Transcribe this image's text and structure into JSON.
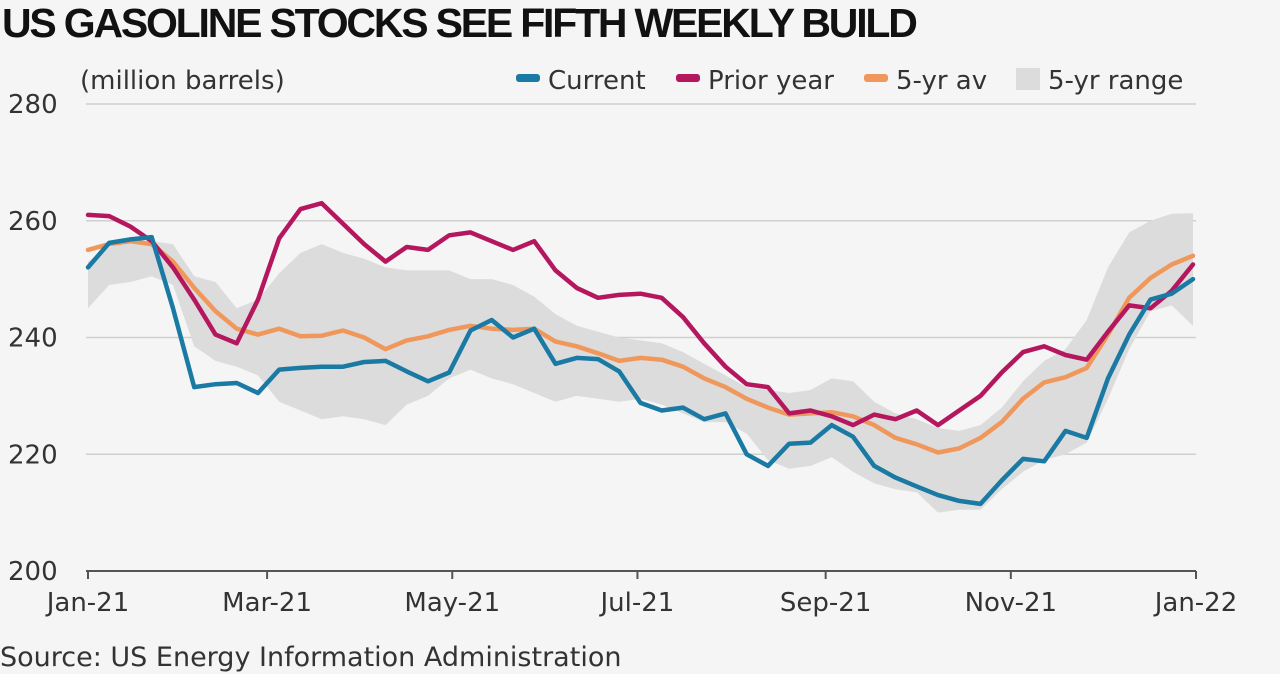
{
  "chart_data": {
    "type": "line",
    "title": "US GASOLINE STOCKS SEE FIFTH WEEKLY BUILD",
    "ylabel": "(million barrels)",
    "source": "Source: US Energy Information Administration",
    "ylim": [
      200,
      280
    ],
    "yticks": [
      200,
      220,
      240,
      260,
      280
    ],
    "xrange": [
      "2021-01-01",
      "2022-01-01"
    ],
    "xticks": [
      {
        "date": "2021-01-01",
        "label": "Jan-21"
      },
      {
        "date": "2021-03-01",
        "label": "Mar-21"
      },
      {
        "date": "2021-05-01",
        "label": "May-21"
      },
      {
        "date": "2021-07-01",
        "label": "Jul-21"
      },
      {
        "date": "2021-09-01",
        "label": "Sep-21"
      },
      {
        "date": "2021-11-01",
        "label": "Nov-21"
      },
      {
        "date": "2022-01-01",
        "label": "Jan-22"
      }
    ],
    "grid": true,
    "legend_position": "top-right",
    "x": [
      "2021-01-01",
      "2021-01-08",
      "2021-01-15",
      "2021-01-22",
      "2021-01-29",
      "2021-02-05",
      "2021-02-12",
      "2021-02-19",
      "2021-02-26",
      "2021-03-05",
      "2021-03-12",
      "2021-03-19",
      "2021-03-26",
      "2021-04-02",
      "2021-04-09",
      "2021-04-16",
      "2021-04-23",
      "2021-04-30",
      "2021-05-07",
      "2021-05-14",
      "2021-05-21",
      "2021-05-28",
      "2021-06-04",
      "2021-06-11",
      "2021-06-18",
      "2021-06-25",
      "2021-07-02",
      "2021-07-09",
      "2021-07-16",
      "2021-07-23",
      "2021-07-30",
      "2021-08-06",
      "2021-08-13",
      "2021-08-20",
      "2021-08-27",
      "2021-09-03",
      "2021-09-10",
      "2021-09-17",
      "2021-09-24",
      "2021-10-01",
      "2021-10-08",
      "2021-10-15",
      "2021-10-22",
      "2021-10-29",
      "2021-11-05",
      "2021-11-12",
      "2021-11-19",
      "2021-11-26",
      "2021-12-03",
      "2021-12-10",
      "2021-12-17",
      "2021-12-24",
      "2021-12-31"
    ],
    "series": [
      {
        "name": "Current",
        "color": "#1a7aa3",
        "kind": "line",
        "values": [
          252.0,
          256.2,
          256.8,
          257.2,
          245.0,
          231.5,
          232.0,
          232.2,
          230.5,
          234.5,
          234.8,
          235.0,
          235.0,
          235.8,
          236.0,
          234.2,
          232.5,
          234.0,
          241.2,
          243.0,
          240.0,
          241.5,
          235.5,
          236.5,
          236.3,
          234.2,
          228.8,
          227.5,
          228.0,
          226.0,
          227.0,
          220.0,
          218.0,
          221.8,
          222.0,
          225.0,
          223.0,
          218.0,
          216.0,
          214.5,
          213.0,
          212.0,
          211.5,
          215.5,
          219.2,
          218.8,
          224.0,
          222.8,
          233.0,
          240.5,
          246.5,
          247.5,
          250.0
        ]
      },
      {
        "name": "Prior year",
        "color": "#b5175e",
        "kind": "line",
        "values": [
          261.0,
          260.8,
          259.0,
          256.5,
          252.0,
          246.5,
          240.5,
          239.0,
          246.5,
          257.0,
          262.0,
          263.0,
          259.5,
          256.0,
          253.0,
          255.5,
          255.0,
          257.5,
          258.0,
          256.5,
          255.0,
          256.5,
          251.5,
          248.5,
          246.8,
          247.3,
          247.5,
          246.8,
          243.5,
          239.0,
          235.0,
          232.0,
          231.5,
          227.0,
          227.5,
          226.5,
          225.0,
          226.8,
          226.0,
          227.5,
          225.0,
          227.5,
          230.0,
          234.0,
          237.5,
          238.5,
          237.0,
          236.2,
          241.0,
          245.5,
          245.0,
          248.0,
          252.5
        ]
      },
      {
        "name": "5-yr av",
        "color": "#f0975c",
        "kind": "line",
        "values": [
          255.0,
          256.0,
          256.5,
          256.0,
          253.0,
          248.5,
          244.5,
          241.5,
          240.5,
          241.5,
          240.2,
          240.3,
          241.2,
          240.0,
          238.0,
          239.5,
          240.2,
          241.3,
          242.0,
          241.5,
          241.3,
          241.5,
          239.3,
          238.5,
          237.3,
          236.0,
          236.5,
          236.2,
          235.0,
          233.0,
          231.5,
          229.5,
          228.0,
          226.8,
          227.0,
          227.2,
          226.5,
          225.0,
          222.8,
          221.7,
          220.3,
          221.0,
          222.8,
          225.5,
          229.5,
          232.3,
          233.2,
          234.8,
          240.5,
          246.8,
          250.2,
          252.5,
          254.0
        ]
      },
      {
        "name": "5-yr range",
        "color": "#dcdcdc",
        "kind": "band",
        "high": [
          253.0,
          255.5,
          256.3,
          256.5,
          256.0,
          250.5,
          249.5,
          245.0,
          246.5,
          251.0,
          254.5,
          256.0,
          254.5,
          253.5,
          252.0,
          251.5,
          251.5,
          251.5,
          250.0,
          250.0,
          249.0,
          247.0,
          244.0,
          242.0,
          241.0,
          240.0,
          239.5,
          239.0,
          237.5,
          235.5,
          233.5,
          231.5,
          231.0,
          230.5,
          231.0,
          233.0,
          232.5,
          229.0,
          227.0,
          226.0,
          224.5,
          224.0,
          225.0,
          228.0,
          232.5,
          236.0,
          238.0,
          243.0,
          252.0,
          258.0,
          260.0,
          261.2,
          261.3
        ],
        "low": [
          245.0,
          249.0,
          249.5,
          250.5,
          249.0,
          238.5,
          236.0,
          235.0,
          233.5,
          229.0,
          227.5,
          226.0,
          226.5,
          226.0,
          225.0,
          228.5,
          230.0,
          233.0,
          234.5,
          233.0,
          232.0,
          230.5,
          229.0,
          230.0,
          229.5,
          229.0,
          229.5,
          228.5,
          227.0,
          225.5,
          225.5,
          223.5,
          219.0,
          217.5,
          218.0,
          219.5,
          217.0,
          215.0,
          214.0,
          213.5,
          210.0,
          210.5,
          210.5,
          214.0,
          217.0,
          219.0,
          220.0,
          222.0,
          229.5,
          238.0,
          244.5,
          245.5,
          242.0
        ]
      }
    ]
  }
}
